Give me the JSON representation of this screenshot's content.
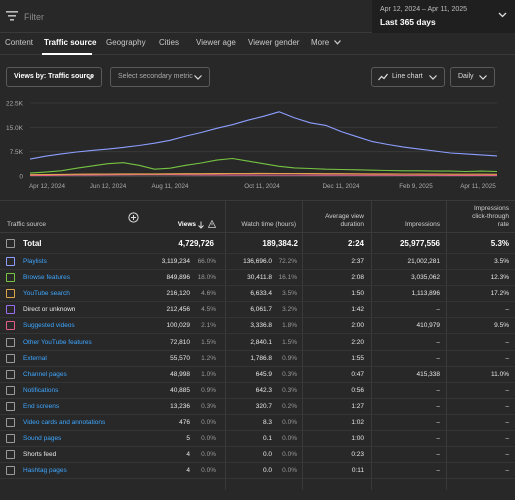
{
  "filter": {
    "placeholder": "Filter"
  },
  "date": {
    "range": "Apr 12, 2024 – Apr 11, 2025",
    "label": "Last 365 days"
  },
  "tabs": [
    {
      "label": "Content",
      "active": false
    },
    {
      "label": "Traffic source",
      "active": true
    },
    {
      "label": "Geography",
      "active": false
    },
    {
      "label": "Cities",
      "active": false
    },
    {
      "label": "Viewer age",
      "active": false
    },
    {
      "label": "Viewer gender",
      "active": false
    },
    {
      "label": "More",
      "active": false
    }
  ],
  "controls": {
    "views_by": "Views by: Traffic source",
    "secondary": "Select secondary metric",
    "chart_type": "Line chart",
    "interval": "Daily"
  },
  "chart_data": {
    "type": "line",
    "y_ticks": [
      "22.5K",
      "15.0K",
      "7.5K",
      "0"
    ],
    "ylim": [
      0,
      22500
    ],
    "x_ticks": [
      "Apr 12, 2024",
      "Jun 12, 2024",
      "Aug 11, 2024",
      "Oct 11, 2024",
      "Dec 11, 2024",
      "Feb 9, 2025",
      "Apr 11, 2025"
    ],
    "grid": true,
    "series": [
      {
        "name": "Playlists",
        "color": "#8c9eff",
        "values": [
          5200,
          6100,
          6800,
          7400,
          7900,
          8300,
          8800,
          9400,
          10100,
          11000,
          12300,
          13400,
          14700,
          15800,
          17200,
          18400,
          19800,
          17900,
          16400,
          15600,
          13700,
          12100,
          10600,
          9700,
          8900,
          8300,
          7700,
          7100,
          6800,
          6500,
          6200
        ]
      },
      {
        "name": "Browse features",
        "color": "#76c442",
        "values": [
          900,
          1200,
          1600,
          2400,
          3100,
          3800,
          4100,
          3300,
          2100,
          2400,
          3300,
          4000,
          4900,
          5400,
          4600,
          3800,
          3000,
          2500,
          2300,
          2100,
          2000,
          1900,
          1800,
          1700,
          1600,
          1600,
          1500,
          1500,
          1400,
          1500,
          1400
        ]
      },
      {
        "name": "YouTube search",
        "color": "#e0a34a",
        "values": [
          400,
          450,
          500,
          550,
          600,
          620,
          640,
          650,
          660,
          680,
          700,
          720,
          740,
          760,
          780,
          790,
          780,
          760,
          740,
          720,
          700,
          680,
          660,
          640,
          620,
          600,
          580,
          560,
          550,
          540,
          520
        ]
      },
      {
        "name": "Suggested videos",
        "color": "#e25c8c",
        "values": [
          150,
          200,
          250,
          300,
          350,
          380,
          400,
          420,
          430,
          420,
          400,
          380,
          360,
          340,
          330,
          320,
          310,
          300,
          290,
          280,
          270,
          260,
          250,
          240,
          230,
          220,
          210,
          200,
          200,
          190,
          180
        ]
      }
    ]
  },
  "table": {
    "headers": {
      "source": "Traffic source",
      "views": "Views",
      "watch": "Watch time (hours)",
      "avg1": "Average view",
      "avg2": "duration",
      "impr": "Impressions",
      "ctr1": "Impressions",
      "ctr2": "click-through",
      "ctr3": "rate"
    },
    "total": {
      "label": "Total",
      "views": "4,729,726",
      "watch": "189,384.2",
      "avg": "2:24",
      "impr": "25,977,556",
      "ctr": "5.3%"
    },
    "rows": [
      {
        "label": "Playlists",
        "link": true,
        "color": "#8c9eff",
        "views": "3,119,234",
        "vpct": "66.0%",
        "watch": "136,696.0",
        "wpct": "72.2%",
        "avg": "2:37",
        "impr": "21,002,281",
        "ctr": "3.5%"
      },
      {
        "label": "Browse features",
        "link": true,
        "color": "#76c442",
        "views": "849,896",
        "vpct": "18.0%",
        "watch": "30,411.8",
        "wpct": "16.1%",
        "avg": "2:08",
        "impr": "3,035,062",
        "ctr": "12.3%"
      },
      {
        "label": "YouTube search",
        "link": true,
        "color": "#e0a34a",
        "views": "216,120",
        "vpct": "4.6%",
        "watch": "6,633.4",
        "wpct": "3.5%",
        "avg": "1:50",
        "impr": "1,113,896",
        "ctr": "17.2%"
      },
      {
        "label": "Direct or unknown",
        "link": false,
        "color": "#9a6cf0",
        "views": "212,456",
        "vpct": "4.5%",
        "watch": "6,061.7",
        "wpct": "3.2%",
        "avg": "1:42",
        "impr": "–",
        "ctr": "–"
      },
      {
        "label": "Suggested videos",
        "link": true,
        "color": "#e25c8c",
        "views": "100,029",
        "vpct": "2.1%",
        "watch": "3,336.8",
        "wpct": "1.8%",
        "avg": "2:00",
        "impr": "410,979",
        "ctr": "9.5%"
      },
      {
        "label": "Other YouTube features",
        "link": true,
        "color": "",
        "views": "72,810",
        "vpct": "1.5%",
        "watch": "2,840.1",
        "wpct": "1.5%",
        "avg": "2:20",
        "impr": "–",
        "ctr": "–"
      },
      {
        "label": "External",
        "link": true,
        "color": "",
        "views": "55,570",
        "vpct": "1.2%",
        "watch": "1,786.8",
        "wpct": "0.9%",
        "avg": "1:55",
        "impr": "–",
        "ctr": "–"
      },
      {
        "label": "Channel pages",
        "link": true,
        "color": "",
        "views": "48,998",
        "vpct": "1.0%",
        "watch": "645.9",
        "wpct": "0.3%",
        "avg": "0:47",
        "impr": "415,338",
        "ctr": "11.0%"
      },
      {
        "label": "Notifications",
        "link": true,
        "color": "",
        "views": "40,885",
        "vpct": "0.9%",
        "watch": "642.3",
        "wpct": "0.3%",
        "avg": "0:56",
        "impr": "–",
        "ctr": "–"
      },
      {
        "label": "End screens",
        "link": true,
        "color": "",
        "views": "13,236",
        "vpct": "0.3%",
        "watch": "320.7",
        "wpct": "0.2%",
        "avg": "1:27",
        "impr": "–",
        "ctr": "–"
      },
      {
        "label": "Video cards and annotations",
        "link": true,
        "color": "",
        "views": "476",
        "vpct": "0.0%",
        "watch": "8.3",
        "wpct": "0.0%",
        "avg": "1:02",
        "impr": "–",
        "ctr": "–"
      },
      {
        "label": "Sound pages",
        "link": true,
        "color": "",
        "views": "5",
        "vpct": "0.0%",
        "watch": "0.1",
        "wpct": "0.0%",
        "avg": "1:00",
        "impr": "–",
        "ctr": "–"
      },
      {
        "label": "Shorts feed",
        "link": false,
        "color": "",
        "views": "4",
        "vpct": "0.0%",
        "watch": "0.0",
        "wpct": "0.0%",
        "avg": "0:23",
        "impr": "–",
        "ctr": "–"
      },
      {
        "label": "Hashtag pages",
        "link": true,
        "color": "",
        "views": "4",
        "vpct": "0.0%",
        "watch": "0.0",
        "wpct": "0.0%",
        "avg": "0:11",
        "impr": "–",
        "ctr": "–"
      }
    ]
  }
}
